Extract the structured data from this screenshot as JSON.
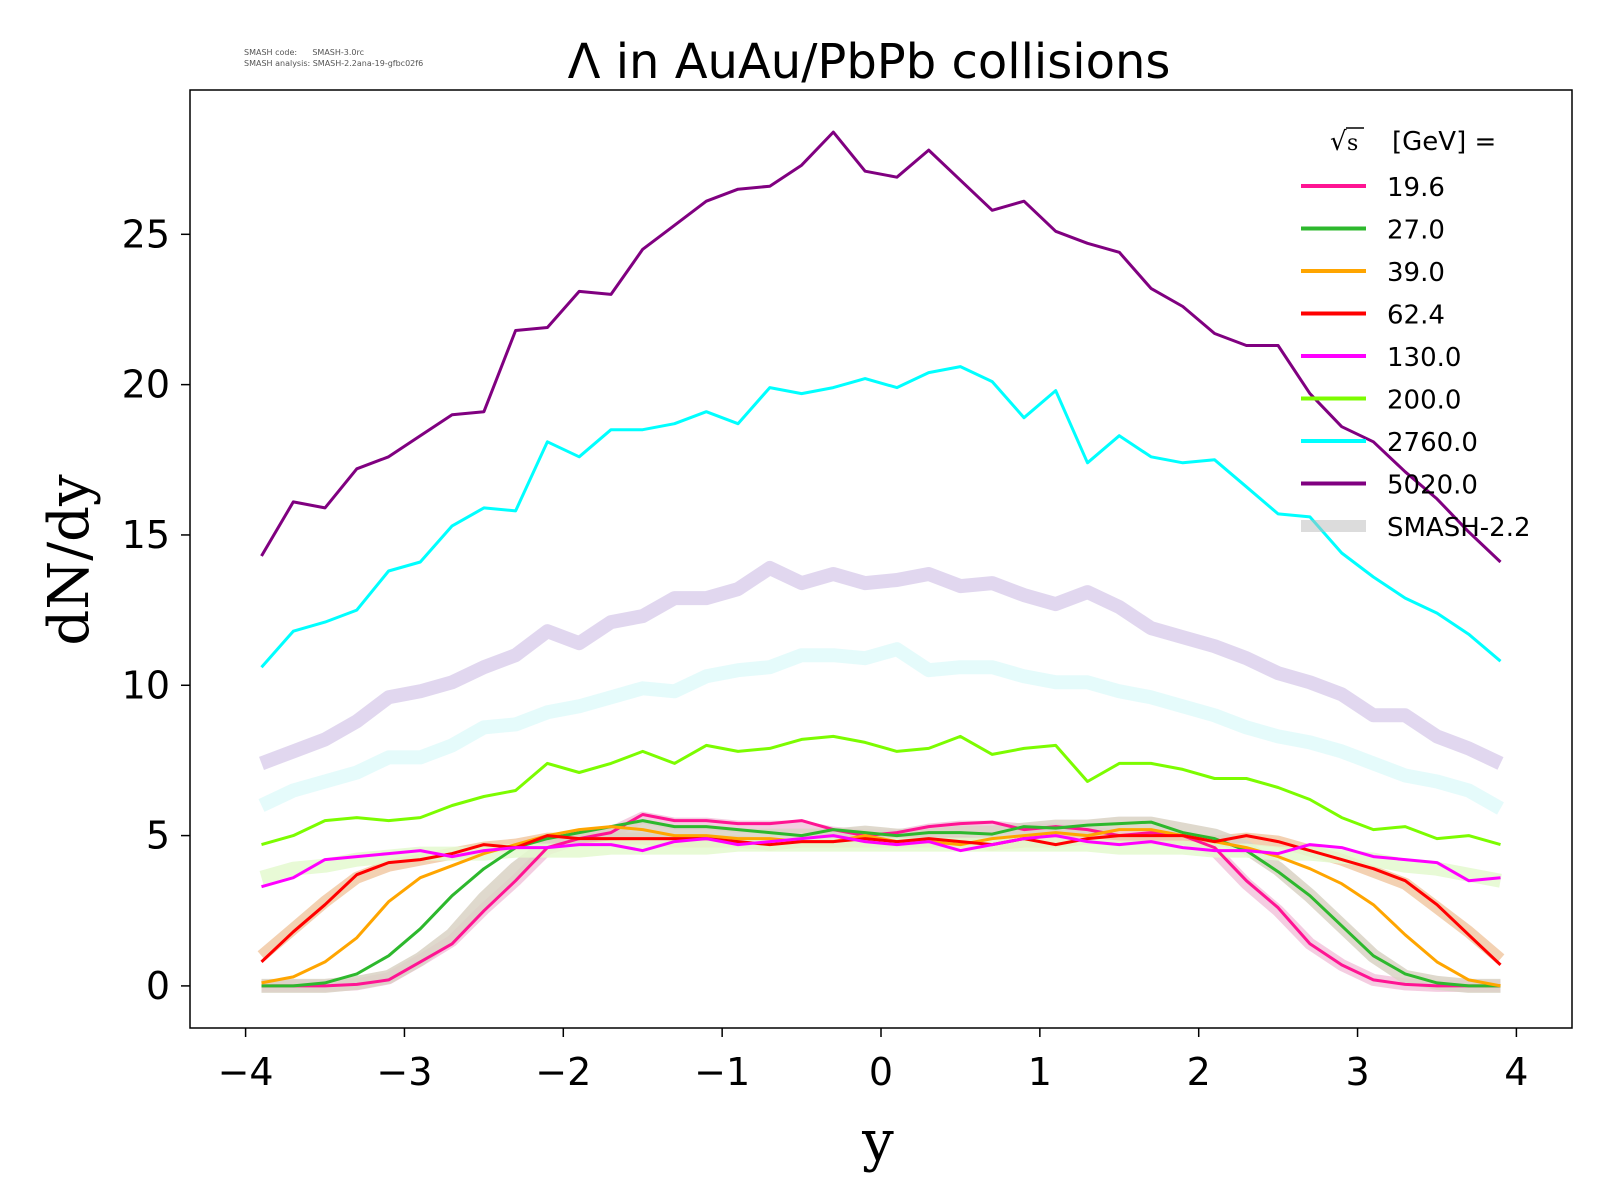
{
  "meta": {
    "code_line": "SMASH code:      SMASH-3.0rc",
    "analysis_line": "SMASH analysis: SMASH-2.2ana-19-gfbc02f6"
  },
  "chart_data": {
    "type": "line",
    "title": "Λ in AuAu/PbPb collisions",
    "xlabel": "y",
    "ylabel": "dN/dy",
    "xlim": [
      -4.35,
      4.35
    ],
    "ylim": [
      -1.4,
      29.8
    ],
    "xticks": [
      -4,
      -3,
      -2,
      -1,
      0,
      1,
      2,
      3,
      4
    ],
    "xtick_labels": [
      "−4",
      "−3",
      "−2",
      "−1",
      "0",
      "1",
      "2",
      "3",
      "4"
    ],
    "yticks": [
      0,
      5,
      10,
      15,
      20,
      25
    ],
    "ytick_labels": [
      "0",
      "5",
      "10",
      "15",
      "20",
      "25"
    ],
    "grid": false,
    "legend": {
      "placement": "top-right",
      "title": "[GeV] =",
      "title_sqrt": "s",
      "reference_label": "SMASH-2.2"
    },
    "x": [
      -3.9,
      -3.7,
      -3.5,
      -3.3,
      -3.1,
      -2.9,
      -2.7,
      -2.5,
      -2.3,
      -2.1,
      -1.9,
      -1.7,
      -1.5,
      -1.3,
      -1.1,
      -0.9,
      -0.7,
      -0.5,
      -0.3,
      -0.1,
      0.1,
      0.3,
      0.5,
      0.7,
      0.9,
      1.1,
      1.3,
      1.5,
      1.7,
      1.9,
      2.1,
      2.3,
      2.5,
      2.7,
      2.9,
      3.1,
      3.3,
      3.5,
      3.7,
      3.9
    ],
    "series": [
      {
        "name": "19.6",
        "color": "#ff1493",
        "values": [
          0.0,
          0.0,
          0.0,
          0.05,
          0.2,
          0.8,
          1.4,
          2.5,
          3.5,
          4.6,
          4.9,
          5.1,
          5.7,
          5.5,
          5.5,
          5.4,
          5.4,
          5.5,
          5.2,
          5.0,
          5.1,
          5.3,
          5.4,
          5.45,
          5.2,
          5.3,
          5.2,
          5.0,
          5.1,
          5.0,
          4.6,
          3.5,
          2.6,
          1.4,
          0.7,
          0.2,
          0.05,
          0.0,
          0.0,
          0.0
        ]
      },
      {
        "name": "27.0",
        "color": "#2db82d",
        "values": [
          0.0,
          0.0,
          0.1,
          0.4,
          1.0,
          1.9,
          3.0,
          3.9,
          4.6,
          4.9,
          5.1,
          5.3,
          5.5,
          5.3,
          5.3,
          5.2,
          5.1,
          5.0,
          5.2,
          5.1,
          5.0,
          5.1,
          5.1,
          5.05,
          5.3,
          5.25,
          5.35,
          5.4,
          5.45,
          5.1,
          4.9,
          4.5,
          3.8,
          3.0,
          2.0,
          1.0,
          0.4,
          0.1,
          0.0,
          0.0
        ]
      },
      {
        "name": "39.0",
        "color": "#ffa500",
        "values": [
          0.1,
          0.3,
          0.8,
          1.6,
          2.8,
          3.6,
          4.0,
          4.4,
          4.7,
          5.0,
          5.2,
          5.3,
          5.2,
          5.0,
          5.0,
          4.9,
          4.9,
          4.8,
          4.8,
          5.0,
          4.8,
          4.8,
          4.7,
          4.9,
          5.0,
          5.1,
          5.0,
          5.2,
          5.2,
          5.0,
          4.8,
          4.6,
          4.3,
          3.9,
          3.4,
          2.7,
          1.7,
          0.8,
          0.2,
          0.0
        ]
      },
      {
        "name": "62.4",
        "color": "#ff0000",
        "values": [
          0.8,
          1.8,
          2.7,
          3.7,
          4.1,
          4.2,
          4.4,
          4.7,
          4.6,
          5.0,
          4.9,
          4.9,
          4.9,
          4.9,
          4.9,
          4.8,
          4.7,
          4.8,
          4.8,
          4.9,
          4.8,
          4.9,
          4.8,
          4.7,
          4.9,
          4.7,
          4.9,
          5.0,
          5.0,
          5.0,
          4.8,
          5.0,
          4.8,
          4.5,
          4.2,
          3.9,
          3.5,
          2.7,
          1.7,
          0.7
        ]
      },
      {
        "name": "130.0",
        "color": "#ff00ff",
        "values": [
          3.3,
          3.6,
          4.2,
          4.3,
          4.4,
          4.5,
          4.3,
          4.5,
          4.6,
          4.6,
          4.7,
          4.7,
          4.5,
          4.8,
          4.9,
          4.7,
          4.8,
          4.9,
          5.0,
          4.8,
          4.7,
          4.8,
          4.5,
          4.7,
          4.9,
          5.0,
          4.8,
          4.7,
          4.8,
          4.6,
          4.5,
          4.5,
          4.4,
          4.7,
          4.6,
          4.3,
          4.2,
          4.1,
          3.5,
          3.6
        ]
      },
      {
        "name": "200.0",
        "color": "#7cfc00",
        "values": [
          4.7,
          5.0,
          5.5,
          5.6,
          5.5,
          5.6,
          6.0,
          6.3,
          6.5,
          7.4,
          7.1,
          7.4,
          7.8,
          7.4,
          8.0,
          7.8,
          7.9,
          8.2,
          8.3,
          8.1,
          7.8,
          7.9,
          8.3,
          7.7,
          7.9,
          8.0,
          6.8,
          7.4,
          7.4,
          7.2,
          6.9,
          6.9,
          6.6,
          6.2,
          5.6,
          5.2,
          5.3,
          4.9,
          5.0,
          4.7
        ]
      },
      {
        "name": "2760.0",
        "color": "#00ffff",
        "values": [
          10.6,
          11.8,
          12.1,
          12.5,
          13.8,
          14.1,
          15.3,
          15.9,
          15.8,
          18.1,
          17.6,
          18.5,
          18.5,
          18.7,
          19.1,
          18.7,
          19.9,
          19.7,
          19.9,
          20.2,
          19.9,
          20.4,
          20.6,
          20.1,
          18.9,
          19.8,
          17.4,
          18.3,
          17.6,
          17.4,
          17.5,
          16.6,
          15.7,
          15.6,
          14.4,
          13.6,
          12.9,
          12.4,
          11.7,
          10.8
        ]
      },
      {
        "name": "5020.0",
        "color": "#800080",
        "values": [
          14.3,
          16.1,
          15.9,
          17.2,
          17.6,
          18.3,
          19.0,
          19.1,
          21.8,
          21.9,
          23.1,
          23.0,
          24.5,
          25.3,
          26.1,
          26.5,
          26.6,
          27.3,
          28.4,
          27.1,
          26.9,
          27.8,
          26.8,
          25.8,
          26.1,
          25.1,
          24.7,
          24.4,
          23.2,
          22.6,
          21.7,
          21.3,
          21.3,
          19.7,
          18.6,
          18.1,
          17.1,
          16.2,
          15.1,
          14.1
        ]
      }
    ],
    "reference_series": [
      {
        "color": "#dcd0ec",
        "fill": "#c8b4dc",
        "width": 14,
        "values": [
          7.4,
          7.8,
          8.2,
          8.8,
          9.6,
          9.8,
          10.1,
          10.6,
          11.0,
          11.8,
          11.4,
          12.1,
          12.3,
          12.9,
          12.9,
          13.2,
          13.9,
          13.4,
          13.7,
          13.4,
          13.5,
          13.7,
          13.3,
          13.4,
          13.0,
          12.7,
          13.1,
          12.6,
          11.9,
          11.6,
          11.3,
          10.9,
          10.4,
          10.1,
          9.7,
          9.0,
          9.0,
          8.3,
          7.9,
          7.4
        ]
      },
      {
        "color": "#e0fafa",
        "fill": "#d6f7f7",
        "width": 14,
        "values": [
          6.0,
          6.5,
          6.8,
          7.1,
          7.6,
          7.6,
          8.0,
          8.6,
          8.7,
          9.1,
          9.3,
          9.6,
          9.9,
          9.8,
          10.3,
          10.5,
          10.6,
          11.0,
          11.0,
          10.9,
          11.2,
          10.5,
          10.6,
          10.6,
          10.3,
          10.1,
          10.1,
          9.8,
          9.6,
          9.3,
          9.0,
          8.6,
          8.3,
          8.1,
          7.8,
          7.4,
          7.0,
          6.8,
          6.5,
          5.9
        ]
      },
      {
        "color": "#f2c4dc",
        "fill": "#f2c4dc",
        "width": 12,
        "values": [
          0.0,
          0.0,
          0.0,
          0.05,
          0.25,
          0.85,
          1.5,
          2.55,
          3.5,
          4.55,
          4.9,
          5.1,
          5.6,
          5.4,
          5.4,
          5.3,
          5.3,
          5.3,
          5.1,
          5.0,
          5.0,
          5.2,
          5.3,
          5.3,
          5.2,
          5.2,
          5.1,
          5.0,
          5.0,
          4.9,
          4.5,
          3.4,
          2.5,
          1.4,
          0.7,
          0.2,
          0.05,
          0.0,
          0.0,
          0.0
        ]
      },
      {
        "color": "#f1c9a4",
        "fill": "#f1c9a4",
        "width": 12,
        "values": [
          1.0,
          1.9,
          2.8,
          3.6,
          4.0,
          4.2,
          4.4,
          4.6,
          4.7,
          4.9,
          4.9,
          4.9,
          4.9,
          4.8,
          4.8,
          4.8,
          4.7,
          4.8,
          4.8,
          4.8,
          4.8,
          4.8,
          4.8,
          4.7,
          4.8,
          4.8,
          4.9,
          4.9,
          4.9,
          4.9,
          4.8,
          4.9,
          4.8,
          4.5,
          4.2,
          3.8,
          3.4,
          2.6,
          1.8,
          0.9
        ]
      },
      {
        "color": "#d9d2c4",
        "fill": "#d9d2c4",
        "width": 14,
        "values": [
          0.0,
          0.0,
          0.0,
          0.1,
          0.3,
          0.9,
          1.7,
          2.9,
          3.9,
          4.7,
          5.0,
          5.1,
          5.2,
          5.1,
          5.1,
          5.0,
          5.0,
          5.0,
          5.0,
          5.1,
          5.0,
          5.0,
          5.1,
          5.1,
          5.2,
          5.3,
          5.3,
          5.4,
          5.4,
          5.2,
          5.0,
          4.6,
          3.9,
          3.0,
          2.0,
          1.0,
          0.3,
          0.1,
          0.0,
          0.0
        ]
      },
      {
        "color": "#e4f9cf",
        "fill": "#e4f9cf",
        "width": 14,
        "values": [
          3.6,
          3.9,
          4.0,
          4.2,
          4.3,
          4.4,
          4.4,
          4.4,
          4.5,
          4.5,
          4.5,
          4.6,
          4.6,
          4.6,
          4.6,
          4.7,
          4.7,
          4.7,
          4.7,
          4.7,
          4.7,
          4.7,
          4.7,
          4.7,
          4.7,
          4.7,
          4.7,
          4.6,
          4.6,
          4.6,
          4.5,
          4.5,
          4.4,
          4.4,
          4.3,
          4.2,
          4.0,
          3.9,
          3.7,
          3.5
        ]
      }
    ]
  }
}
